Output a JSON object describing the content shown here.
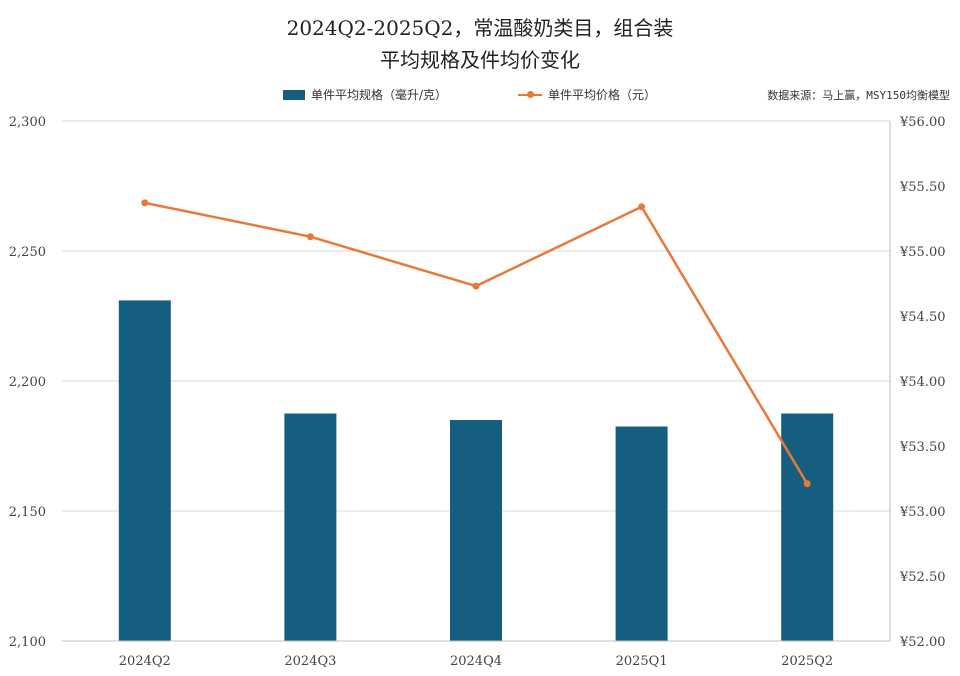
{
  "header": {
    "title_line1": "2024Q2-2025Q2，常温酸奶类目，组合装",
    "title_line2": "平均规格及件均价变化"
  },
  "legend": {
    "bar_label": "单件平均规格（毫升/克）",
    "line_label": "单件平均价格（元）"
  },
  "source": "数据来源：马上赢，MSY150均衡模型",
  "chart_data": {
    "type": "bar",
    "categories": [
      "2024Q2",
      "2024Q3",
      "2024Q4",
      "2025Q1",
      "2025Q2"
    ],
    "series": [
      {
        "name": "单件平均规格（毫升/克）",
        "type": "bar",
        "axis": "left",
        "values": [
          2231,
          2187.5,
          2185,
          2182.5,
          2187.5
        ],
        "color": "#155e7f"
      },
      {
        "name": "单件平均价格（元）",
        "type": "line",
        "axis": "right",
        "values": [
          55.37,
          55.11,
          54.73,
          55.34,
          53.21
        ],
        "color": "#e7793a"
      }
    ],
    "y_left": {
      "min": 2100,
      "max": 2300,
      "ticks": [
        2100,
        2150,
        2200,
        2250,
        2300
      ],
      "tick_labels": [
        "2,100",
        "2,150",
        "2,200",
        "2,250",
        "2,300"
      ]
    },
    "y_right": {
      "min": 52,
      "max": 56,
      "ticks": [
        52,
        52.5,
        53,
        53.5,
        54,
        54.5,
        55,
        55.5,
        56
      ],
      "tick_labels": [
        "¥52.00",
        "¥52.50",
        "¥53.00",
        "¥53.50",
        "¥54.00",
        "¥54.50",
        "¥55.00",
        "¥55.50",
        "¥56.00"
      ]
    },
    "grid": true,
    "legend_position": "top"
  }
}
